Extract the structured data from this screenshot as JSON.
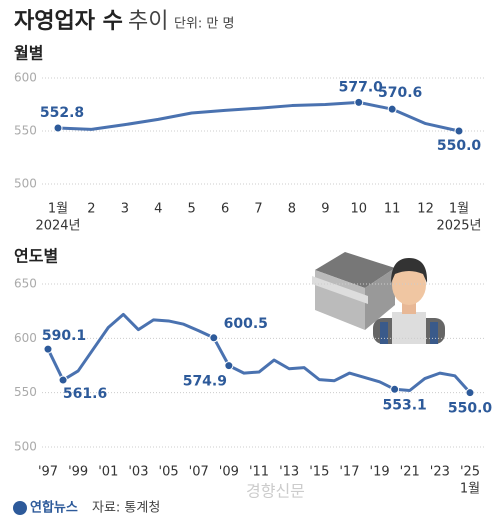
{
  "title": "자영업자 수",
  "subtitle": "추이",
  "unit": "단위: 만 명",
  "source_logo": "연합뉴스",
  "source": "자료: 통계청",
  "watermark": "경향신문",
  "chart_data": [
    {
      "type": "line",
      "title": "월별",
      "color": "#4a72b0",
      "categories": [
        "1월",
        "2",
        "3",
        "4",
        "5",
        "6",
        "7",
        "8",
        "9",
        "10",
        "11",
        "12",
        "1월"
      ],
      "x_sublabels": [
        "2024년",
        null,
        null,
        null,
        null,
        null,
        null,
        null,
        null,
        null,
        null,
        null,
        "2025년"
      ],
      "values": [
        552.8,
        551.5,
        556,
        561,
        567,
        569.5,
        571.5,
        574,
        575,
        577.0,
        570.6,
        557,
        550.0
      ],
      "value_labels": [
        "552.8",
        null,
        null,
        null,
        null,
        null,
        null,
        null,
        null,
        "577.0",
        "570.6",
        null,
        "550.0"
      ],
      "ylim": [
        500,
        600
      ],
      "yticks": [
        500,
        550,
        600
      ],
      "grid": true
    },
    {
      "type": "line",
      "title": "연도별",
      "color": "#4a72b0",
      "categories": [
        "'97",
        null,
        "'99",
        null,
        "'01",
        null,
        "'03",
        null,
        "'05",
        null,
        "'07",
        null,
        "'09",
        null,
        "'11",
        null,
        "'13",
        null,
        "'15",
        null,
        "'17",
        null,
        "'19",
        null,
        "'21",
        null,
        "'23",
        null,
        "'25"
      ],
      "x_note": "1월",
      "values": [
        590.1,
        561.6,
        570,
        590,
        610,
        622,
        608,
        617,
        616,
        613,
        607,
        600.5,
        574.9,
        568,
        569,
        580,
        572,
        573,
        562,
        561,
        568,
        564,
        560,
        553.1,
        552,
        563,
        568,
        565.5,
        550.0
      ],
      "value_labels": [
        "590.1",
        "561.6",
        null,
        null,
        null,
        null,
        null,
        null,
        null,
        null,
        null,
        "600.5",
        "574.9",
        null,
        null,
        null,
        null,
        null,
        null,
        null,
        null,
        null,
        null,
        "553.1",
        null,
        null,
        null,
        null,
        "550.0"
      ],
      "ylim": [
        500,
        650
      ],
      "yticks": [
        500,
        550,
        600,
        650
      ],
      "grid": true
    }
  ]
}
